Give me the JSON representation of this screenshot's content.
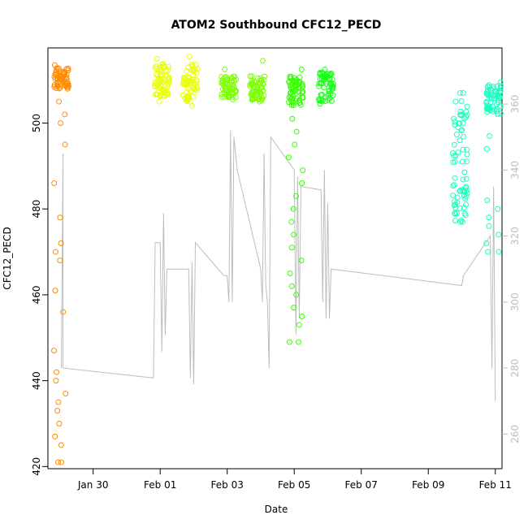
{
  "chart_data": {
    "type": "scatter",
    "title": "ATOM2 Southbound CFC12_PECD",
    "xlabel": "Date",
    "ylabel": "CFC12_PECD",
    "y2label": "",
    "xlim": [
      28.65,
      41.4
    ],
    "ylim": [
      419.5,
      517.5
    ],
    "y2lim": [
      249.5,
      377
    ],
    "x_ticks": [
      {
        "x": 30,
        "label": "Jan 30"
      },
      {
        "x": 32,
        "label": "Feb 01"
      },
      {
        "x": 34,
        "label": "Feb 03"
      },
      {
        "x": 36,
        "label": "Feb 05"
      },
      {
        "x": 38,
        "label": "Feb 07"
      },
      {
        "x": 40,
        "label": "Feb 09"
      },
      {
        "x": 42,
        "label": "Feb 11"
      }
    ],
    "y_ticks": [
      420,
      440,
      460,
      480,
      500
    ],
    "y2_ticks": [
      260,
      280,
      300,
      320,
      340,
      360
    ],
    "grid": false,
    "colors": {
      "line": "#bdbdbd",
      "axis": "#000000",
      "right_axis": "#bdbdbd",
      "group1": "#ff8c00",
      "group2": "#e8ff00",
      "group3": "#7dff00",
      "group4": "#33ff00",
      "group5": "#1aff1a",
      "group6": "#22ff66",
      "group7": "#1affc0"
    },
    "series": [
      {
        "group": "group1",
        "x": 29.05,
        "y_min": 421,
        "y_max": 513.5,
        "cluster_top": [
          508,
          513
        ],
        "note_points": [
          421,
          425,
          427,
          430,
          433,
          435,
          437,
          440,
          442,
          447,
          456,
          461,
          468,
          470,
          472,
          478,
          486,
          495,
          500,
          502,
          505,
          508,
          510,
          512
        ]
      },
      {
        "group": "group2",
        "x": 32.05,
        "y_min": 505,
        "y_max": 515,
        "cluster_top": [
          506,
          514
        ]
      },
      {
        "group": "group2",
        "x": 32.9,
        "y_min": 504,
        "y_max": 515.5,
        "cluster_top": [
          505,
          514
        ]
      },
      {
        "group": "group3",
        "x": 34.05,
        "y_min": 505.5,
        "y_max": 512.5,
        "cluster_top": [
          506,
          511
        ]
      },
      {
        "group": "group3",
        "x": 34.9,
        "y_min": 505,
        "y_max": 514.5,
        "cluster_top": [
          505,
          511
        ]
      },
      {
        "group": "group4",
        "x": 36.05,
        "y_min": 449,
        "y_max": 512.5,
        "cluster_top": [
          504,
          511
        ],
        "note_points": [
          449,
          453,
          455,
          457,
          460,
          462,
          465,
          468,
          471,
          474,
          477,
          480,
          483,
          486,
          489,
          492,
          495,
          498,
          501
        ]
      },
      {
        "group": "group5",
        "x": 36.95,
        "y_min": 504.5,
        "y_max": 512.5,
        "cluster_top": [
          505,
          512
        ]
      },
      {
        "group": "group7",
        "x": 40.95,
        "y_min": 477,
        "y_max": 507,
        "cluster_top": [
          477,
          507
        ],
        "note_points": [
          477,
          479,
          481,
          484,
          487,
          491,
          493,
          496,
          499,
          502,
          505,
          507
        ]
      },
      {
        "group": "group7",
        "x": 41.95,
        "y_min": 470,
        "y_max": 509.5,
        "cluster_top": [
          502,
          509
        ],
        "note_points": [
          470,
          472,
          474,
          476,
          478,
          480,
          482,
          494,
          497
        ]
      }
    ],
    "secondary_line": [
      {
        "x": 29.05,
        "y2": 280
      },
      {
        "x": 29.1,
        "y2": 345
      },
      {
        "x": 29.1,
        "y2": 280
      },
      {
        "x": 31.8,
        "y2": 277
      },
      {
        "x": 31.85,
        "y2": 318
      },
      {
        "x": 32.0,
        "y2": 318
      },
      {
        "x": 32.05,
        "y2": 285
      },
      {
        "x": 32.1,
        "y2": 327
      },
      {
        "x": 32.15,
        "y2": 290
      },
      {
        "x": 32.2,
        "y2": 310
      },
      {
        "x": 32.85,
        "y2": 310
      },
      {
        "x": 32.9,
        "y2": 277
      },
      {
        "x": 32.95,
        "y2": 312
      },
      {
        "x": 33.0,
        "y2": 275
      },
      {
        "x": 33.05,
        "y2": 318
      },
      {
        "x": 33.9,
        "y2": 308
      },
      {
        "x": 34.0,
        "y2": 308
      },
      {
        "x": 34.05,
        "y2": 300
      },
      {
        "x": 34.1,
        "y2": 352
      },
      {
        "x": 34.15,
        "y2": 300
      },
      {
        "x": 34.2,
        "y2": 350
      },
      {
        "x": 34.3,
        "y2": 340
      },
      {
        "x": 35.0,
        "y2": 310
      },
      {
        "x": 35.05,
        "y2": 300
      },
      {
        "x": 35.1,
        "y2": 345
      },
      {
        "x": 35.15,
        "y2": 305
      },
      {
        "x": 35.2,
        "y2": 300
      },
      {
        "x": 35.25,
        "y2": 280
      },
      {
        "x": 35.3,
        "y2": 350
      },
      {
        "x": 36.0,
        "y2": 340
      },
      {
        "x": 36.05,
        "y2": 290
      },
      {
        "x": 36.1,
        "y2": 338
      },
      {
        "x": 36.15,
        "y2": 295
      },
      {
        "x": 36.2,
        "y2": 335
      },
      {
        "x": 36.8,
        "y2": 334
      },
      {
        "x": 36.85,
        "y2": 300
      },
      {
        "x": 36.9,
        "y2": 340
      },
      {
        "x": 36.95,
        "y2": 295
      },
      {
        "x": 37.0,
        "y2": 330
      },
      {
        "x": 37.05,
        "y2": 295
      },
      {
        "x": 37.1,
        "y2": 310
      },
      {
        "x": 41.0,
        "y2": 305
      },
      {
        "x": 41.05,
        "y2": 308
      },
      {
        "x": 41.85,
        "y2": 320
      },
      {
        "x": 41.9,
        "y2": 280
      },
      {
        "x": 41.95,
        "y2": 335
      },
      {
        "x": 42.0,
        "y2": 270
      }
    ]
  }
}
